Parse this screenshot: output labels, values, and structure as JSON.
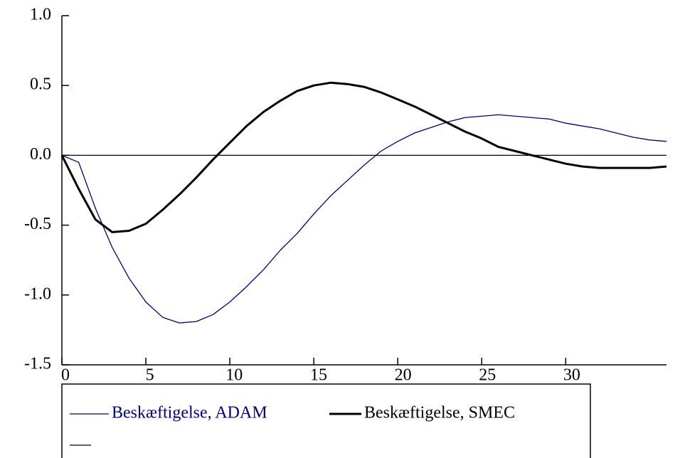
{
  "chart_data": {
    "type": "line",
    "x": [
      0,
      1,
      2,
      3,
      4,
      5,
      6,
      7,
      8,
      9,
      10,
      11,
      12,
      13,
      14,
      15,
      16,
      17,
      18,
      19,
      20,
      21,
      22,
      23,
      24,
      25,
      26,
      27,
      28,
      29,
      30,
      31,
      32,
      33,
      34,
      35,
      36
    ],
    "xlim": [
      0,
      36
    ],
    "xticks": [
      0,
      5,
      10,
      15,
      20,
      25,
      30
    ],
    "ylim": [
      -1.5,
      1.0
    ],
    "yticks": [
      {
        "value": -1.5,
        "label": "-1.5"
      },
      {
        "value": -1.0,
        "label": "-1.0"
      },
      {
        "value": -0.5,
        "label": "-0.5"
      },
      {
        "value": 0,
        "label": "0.0"
      },
      {
        "value": 0.5,
        "label": "0.5"
      },
      {
        "value": 1.0,
        "label": "1.0"
      }
    ],
    "series": [
      {
        "name": "Beskæftigelse, ADAM",
        "color": "#000080",
        "width": 1.3,
        "values": [
          0,
          -0.05,
          -0.38,
          -0.66,
          -0.88,
          -1.05,
          -1.16,
          -1.2,
          -1.19,
          -1.14,
          -1.05,
          -0.94,
          -0.82,
          -0.68,
          -0.56,
          -0.42,
          -0.29,
          -0.18,
          -0.07,
          0.03,
          0.1,
          0.16,
          0.2,
          0.24,
          0.27,
          0.28,
          0.29,
          0.28,
          0.27,
          0.26,
          0.23,
          0.21,
          0.19,
          0.16,
          0.13,
          0.11,
          0.1
        ]
      },
      {
        "name": "Beskæftigelse, SMEC",
        "color": "#000000",
        "width": 3,
        "values": [
          0,
          -0.24,
          -0.46,
          -0.55,
          -0.54,
          -0.49,
          -0.39,
          -0.28,
          -0.16,
          -0.03,
          0.09,
          0.21,
          0.31,
          0.39,
          0.46,
          0.5,
          0.52,
          0.51,
          0.49,
          0.45,
          0.4,
          0.35,
          0.29,
          0.23,
          0.17,
          0.12,
          0.06,
          0.03,
          0,
          -0.03,
          -0.06,
          -0.08,
          -0.09,
          -0.09,
          -0.09,
          -0.09,
          -0.08
        ]
      },
      {
        "color": "#000000",
        "width": 1.3,
        "values": [
          0,
          0,
          0,
          0,
          0,
          0,
          0,
          0,
          0,
          0,
          0,
          0,
          0,
          0,
          0,
          0,
          0,
          0,
          0,
          0,
          0,
          0,
          0,
          0,
          0,
          0,
          0,
          0,
          0,
          0,
          0,
          0,
          0,
          0,
          0,
          0,
          0
        ]
      }
    ]
  }
}
